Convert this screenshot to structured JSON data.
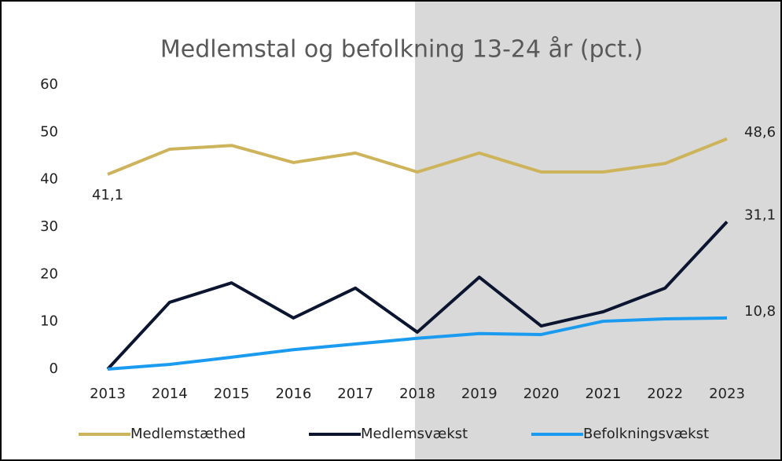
{
  "chart_data": {
    "type": "line",
    "title": "Medlemstal og befolkning 13-24 år (pct.)",
    "categories": [
      "2013",
      "2014",
      "2015",
      "2016",
      "2017",
      "2018",
      "2019",
      "2020",
      "2021",
      "2022",
      "2023"
    ],
    "series": [
      {
        "name": "Medlemstæthed",
        "color": "#cdb45a",
        "values": [
          41.1,
          46.4,
          47.2,
          43.6,
          45.6,
          41.6,
          45.6,
          41.6,
          41.6,
          43.4,
          48.6
        ],
        "value_labels": [
          "41,1",
          null,
          null,
          null,
          null,
          null,
          null,
          null,
          null,
          null,
          "48,6"
        ]
      },
      {
        "name": "Medlemsvækst",
        "color": "#0b1530",
        "values": [
          0,
          14.1,
          18.2,
          10.8,
          17.1,
          7.8,
          19.4,
          9.1,
          12.1,
          17.1,
          31.1
        ],
        "value_labels": [
          null,
          null,
          null,
          null,
          null,
          null,
          null,
          null,
          null,
          null,
          "31,1"
        ]
      },
      {
        "name": "Befolkningsvækst",
        "color": "#1a9bf0",
        "values": [
          0,
          1.0,
          2.5,
          4.1,
          5.3,
          6.5,
          7.5,
          7.3,
          10.1,
          10.6,
          10.8
        ],
        "value_labels": [
          null,
          null,
          null,
          null,
          null,
          null,
          null,
          null,
          null,
          null,
          "10,8"
        ]
      }
    ],
    "ylim": [
      0,
      60
    ],
    "yticks": [
      0,
      10,
      20,
      30,
      40,
      50,
      60
    ],
    "grid": false,
    "legend": "bottom"
  }
}
